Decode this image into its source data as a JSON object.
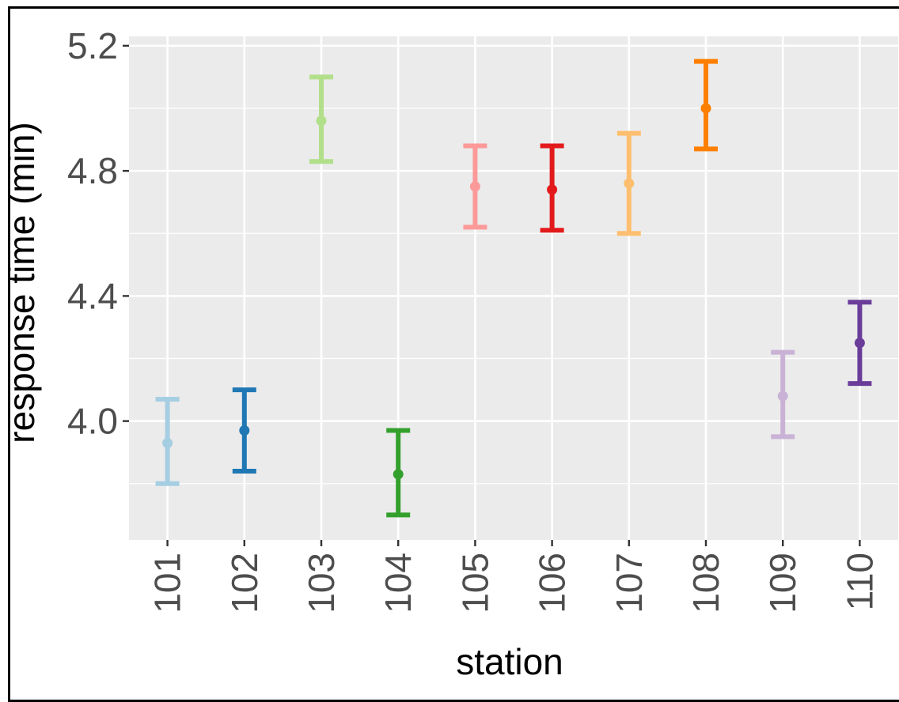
{
  "chart_data": {
    "type": "errorbar",
    "title": "",
    "xlabel": "station",
    "ylabel": "response time (min)",
    "categories": [
      "101",
      "102",
      "103",
      "104",
      "105",
      "106",
      "107",
      "108",
      "109",
      "110"
    ],
    "ylim": [
      3.62,
      5.23
    ],
    "y_ticks": [
      "4.0",
      "4.4",
      "4.8",
      "5.2"
    ],
    "grid": true,
    "legend": "none",
    "points": [
      {
        "x": "101",
        "y": 3.93,
        "lower": 3.8,
        "upper": 4.07,
        "color": "#a6cee3"
      },
      {
        "x": "102",
        "y": 3.97,
        "lower": 3.84,
        "upper": 4.1,
        "color": "#1f78b4"
      },
      {
        "x": "103",
        "y": 4.96,
        "lower": 4.83,
        "upper": 5.1,
        "color": "#b2df8a"
      },
      {
        "x": "104",
        "y": 3.83,
        "lower": 3.7,
        "upper": 3.97,
        "color": "#33a02c"
      },
      {
        "x": "105",
        "y": 4.75,
        "lower": 4.62,
        "upper": 4.88,
        "color": "#fb9a99"
      },
      {
        "x": "106",
        "y": 4.74,
        "lower": 4.61,
        "upper": 4.88,
        "color": "#e31a1c"
      },
      {
        "x": "107",
        "y": 4.76,
        "lower": 4.6,
        "upper": 4.92,
        "color": "#fdbf6f"
      },
      {
        "x": "108",
        "y": 5.0,
        "lower": 4.87,
        "upper": 5.15,
        "color": "#ff7f00"
      },
      {
        "x": "109",
        "y": 4.08,
        "lower": 3.95,
        "upper": 4.22,
        "color": "#cab2d6"
      },
      {
        "x": "110",
        "y": 4.25,
        "lower": 4.12,
        "upper": 4.38,
        "color": "#6a3d9a"
      }
    ]
  }
}
